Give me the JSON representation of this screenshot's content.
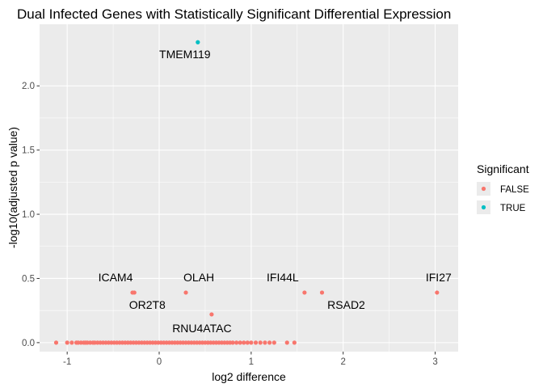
{
  "chart_data": {
    "type": "scatter",
    "title": "Dual Infected Genes with Statistically Significant Differential Expression",
    "xlabel": "log2 difference",
    "ylabel": "-log10(adjusted p value)",
    "xlim": [
      -1.3,
      3.25
    ],
    "ylim": [
      -0.07,
      2.48
    ],
    "xticks": [
      -1,
      0,
      1,
      2,
      3
    ],
    "yticks": [
      0.0,
      0.5,
      1.0,
      1.5,
      2.0
    ],
    "ytick_labels": [
      "0.0",
      "0.5",
      "1.0",
      "1.5",
      "2.0"
    ],
    "grid": true,
    "legend": {
      "title": "Significant",
      "position": "right",
      "entries": [
        {
          "label": "FALSE",
          "color": "#F8766D"
        },
        {
          "label": "TRUE",
          "color": "#00BFC4"
        }
      ]
    },
    "series": [
      {
        "name": "FALSE",
        "color": "#F8766D",
        "points": [
          {
            "x": -0.29,
            "y": 0.39,
            "label": "ICAM4"
          },
          {
            "x": -0.27,
            "y": 0.39,
            "label": "OR2T8"
          },
          {
            "x": 0.29,
            "y": 0.39,
            "label": "OLAH"
          },
          {
            "x": 0.57,
            "y": 0.22,
            "label": "RNU4ATAC"
          },
          {
            "x": 1.58,
            "y": 0.39,
            "label": "IFI44L"
          },
          {
            "x": 1.77,
            "y": 0.39,
            "label": "RSAD2"
          },
          {
            "x": 3.02,
            "y": 0.39,
            "label": "IFI27"
          },
          {
            "x": -1.12,
            "y": 0.0
          },
          {
            "x": -1.0,
            "y": 0.0
          },
          {
            "x": -0.95,
            "y": 0.0
          },
          {
            "x": -0.9,
            "y": 0.0
          },
          {
            "x": -0.88,
            "y": 0.0
          },
          {
            "x": -0.85,
            "y": 0.0
          },
          {
            "x": -0.82,
            "y": 0.0
          },
          {
            "x": -0.8,
            "y": 0.0
          },
          {
            "x": -0.78,
            "y": 0.0
          },
          {
            "x": -0.75,
            "y": 0.0
          },
          {
            "x": -0.72,
            "y": 0.0
          },
          {
            "x": -0.7,
            "y": 0.0
          },
          {
            "x": -0.67,
            "y": 0.0
          },
          {
            "x": -0.64,
            "y": 0.0
          },
          {
            "x": -0.61,
            "y": 0.0
          },
          {
            "x": -0.58,
            "y": 0.0
          },
          {
            "x": -0.55,
            "y": 0.0
          },
          {
            "x": -0.52,
            "y": 0.0
          },
          {
            "x": -0.49,
            "y": 0.0
          },
          {
            "x": -0.46,
            "y": 0.0
          },
          {
            "x": -0.43,
            "y": 0.0
          },
          {
            "x": -0.4,
            "y": 0.0
          },
          {
            "x": -0.37,
            "y": 0.0
          },
          {
            "x": -0.34,
            "y": 0.0
          },
          {
            "x": -0.31,
            "y": 0.0
          },
          {
            "x": -0.28,
            "y": 0.0
          },
          {
            "x": -0.25,
            "y": 0.0
          },
          {
            "x": -0.22,
            "y": 0.0
          },
          {
            "x": -0.19,
            "y": 0.0
          },
          {
            "x": -0.16,
            "y": 0.0
          },
          {
            "x": -0.13,
            "y": 0.0
          },
          {
            "x": -0.1,
            "y": 0.0
          },
          {
            "x": -0.07,
            "y": 0.0
          },
          {
            "x": -0.04,
            "y": 0.0
          },
          {
            "x": -0.01,
            "y": 0.0
          },
          {
            "x": 0.02,
            "y": 0.0
          },
          {
            "x": 0.05,
            "y": 0.0
          },
          {
            "x": 0.08,
            "y": 0.0
          },
          {
            "x": 0.11,
            "y": 0.0
          },
          {
            "x": 0.14,
            "y": 0.0
          },
          {
            "x": 0.17,
            "y": 0.0
          },
          {
            "x": 0.2,
            "y": 0.0
          },
          {
            "x": 0.23,
            "y": 0.0
          },
          {
            "x": 0.26,
            "y": 0.0
          },
          {
            "x": 0.29,
            "y": 0.0
          },
          {
            "x": 0.32,
            "y": 0.0
          },
          {
            "x": 0.35,
            "y": 0.0
          },
          {
            "x": 0.38,
            "y": 0.0
          },
          {
            "x": 0.41,
            "y": 0.0
          },
          {
            "x": 0.44,
            "y": 0.0
          },
          {
            "x": 0.47,
            "y": 0.0
          },
          {
            "x": 0.5,
            "y": 0.0
          },
          {
            "x": 0.53,
            "y": 0.0
          },
          {
            "x": 0.56,
            "y": 0.0
          },
          {
            "x": 0.59,
            "y": 0.0
          },
          {
            "x": 0.62,
            "y": 0.0
          },
          {
            "x": 0.65,
            "y": 0.0
          },
          {
            "x": 0.68,
            "y": 0.0
          },
          {
            "x": 0.71,
            "y": 0.0
          },
          {
            "x": 0.74,
            "y": 0.0
          },
          {
            "x": 0.77,
            "y": 0.0
          },
          {
            "x": 0.8,
            "y": 0.0
          },
          {
            "x": 0.84,
            "y": 0.0
          },
          {
            "x": 0.88,
            "y": 0.0
          },
          {
            "x": 0.92,
            "y": 0.0
          },
          {
            "x": 0.96,
            "y": 0.0
          },
          {
            "x": 1.0,
            "y": 0.0
          },
          {
            "x": 1.05,
            "y": 0.0
          },
          {
            "x": 1.1,
            "y": 0.0
          },
          {
            "x": 1.15,
            "y": 0.0
          },
          {
            "x": 1.2,
            "y": 0.0
          },
          {
            "x": 1.25,
            "y": 0.0
          },
          {
            "x": 1.39,
            "y": 0.0
          },
          {
            "x": 1.47,
            "y": 0.0
          }
        ]
      },
      {
        "name": "TRUE",
        "color": "#00BFC4",
        "points": [
          {
            "x": 0.42,
            "y": 2.34,
            "label": "TMEM119"
          }
        ]
      }
    ]
  }
}
